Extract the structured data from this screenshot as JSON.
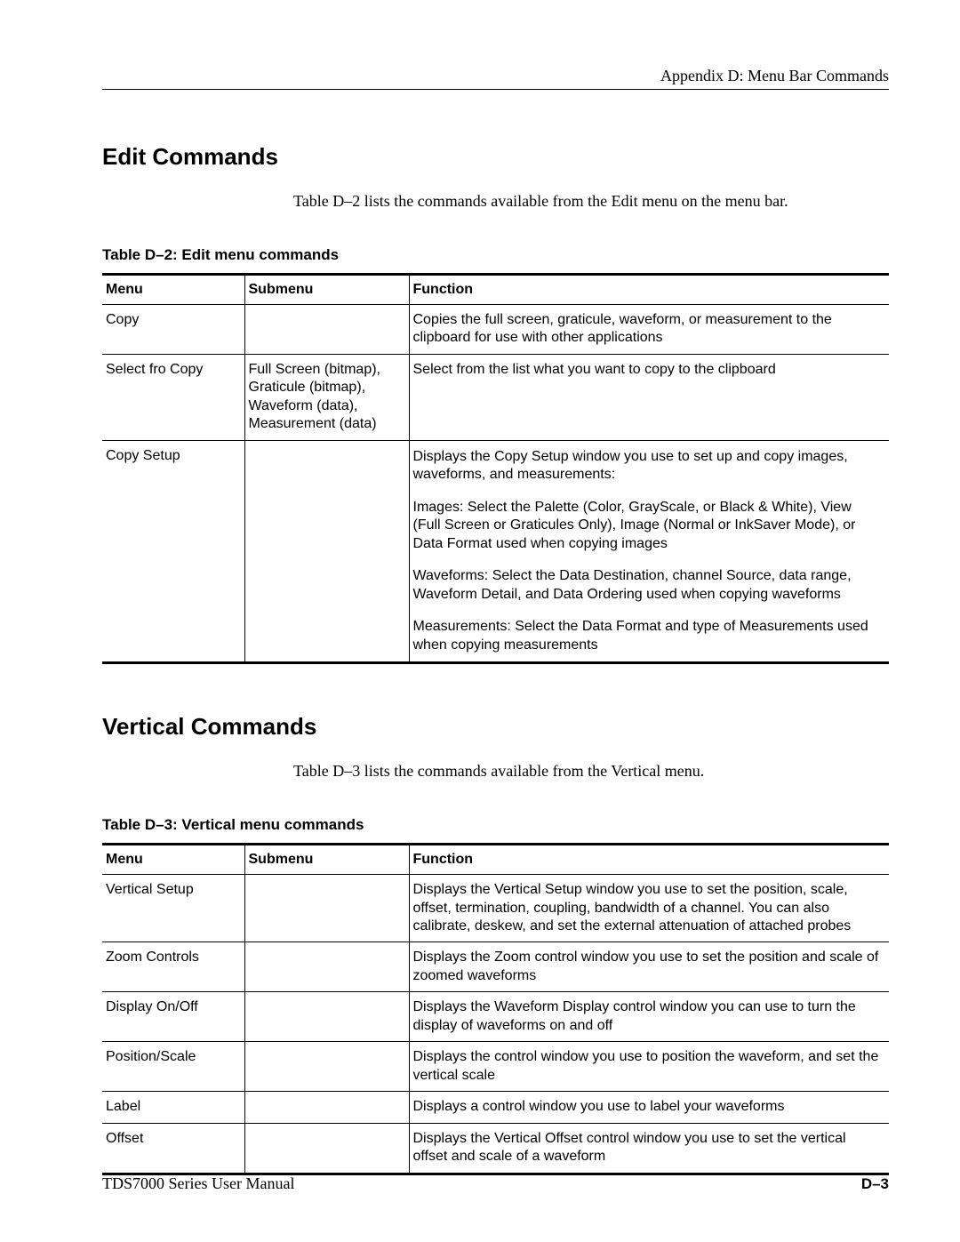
{
  "header": {
    "appendix": "Appendix D: Menu Bar Commands"
  },
  "section1": {
    "heading": "Edit Commands",
    "intro": "Table D–2 lists the commands available from the Edit menu on the menu bar.",
    "table_caption": "Table D–2: Edit menu commands",
    "columns": {
      "menu": "Menu",
      "submenu": "Submenu",
      "function": "Function"
    },
    "rows": {
      "copy": {
        "menu": "Copy",
        "submenu": "",
        "function": "Copies the full screen, graticule, waveform, or measurement to the clipboard for use with other applications"
      },
      "select_fro_copy": {
        "menu": "Select fro Copy",
        "submenu": "Full Screen (bitmap), Graticule (bitmap), Waveform (data), Measurement (data)",
        "function": "Select from the list what you want to copy to the clipboard"
      },
      "copy_setup": {
        "menu": "Copy Setup",
        "submenu": "",
        "f1": "Displays the Copy Setup window you use to set up and copy images, waveforms, and measurements:",
        "f2": "Images: Select the Palette (Color, GrayScale, or Black & White), View (Full Screen or Graticules Only), Image (Normal or InkSaver Mode), or Data Format used when copying images",
        "f3": "Waveforms: Select the Data Destination, channel Source, data range, Waveform Detail, and Data Ordering used when copying waveforms",
        "f4": "Measurements: Select the Data Format and type of Measurements used when copying measurements"
      }
    }
  },
  "section2": {
    "heading": "Vertical Commands",
    "intro": "Table D–3 lists the commands available from the Vertical menu.",
    "table_caption": "Table D–3: Vertical menu commands",
    "columns": {
      "menu": "Menu",
      "submenu": "Submenu",
      "function": "Function"
    },
    "rows": {
      "vertical_setup": {
        "menu": "Vertical Setup",
        "submenu": "",
        "function": "Displays the Vertical Setup window you use to set the position, scale, offset, termination, coupling, bandwidth of a channel. You can also calibrate, deskew, and set the external attenuation of attached probes"
      },
      "zoom_controls": {
        "menu": "Zoom Controls",
        "submenu": "",
        "function": "Displays the Zoom control window you use to set the position and scale of zoomed waveforms"
      },
      "display_onoff": {
        "menu": "Display On/Off",
        "submenu": "",
        "function": "Displays the Waveform Display control window you can use to turn the display of waveforms on and off"
      },
      "position_scale": {
        "menu": "Position/Scale",
        "submenu": "",
        "function": "Displays the control window you use to position the waveform, and set the vertical scale"
      },
      "label": {
        "menu": "Label",
        "submenu": "",
        "function": "Displays a control window you use to label your waveforms"
      },
      "offset": {
        "menu": "Offset",
        "submenu": "",
        "function": "Displays the Vertical Offset control window you use to set the vertical offset and scale of a waveform"
      }
    }
  },
  "footer": {
    "left": "TDS7000 Series User Manual",
    "right": "D–3"
  }
}
